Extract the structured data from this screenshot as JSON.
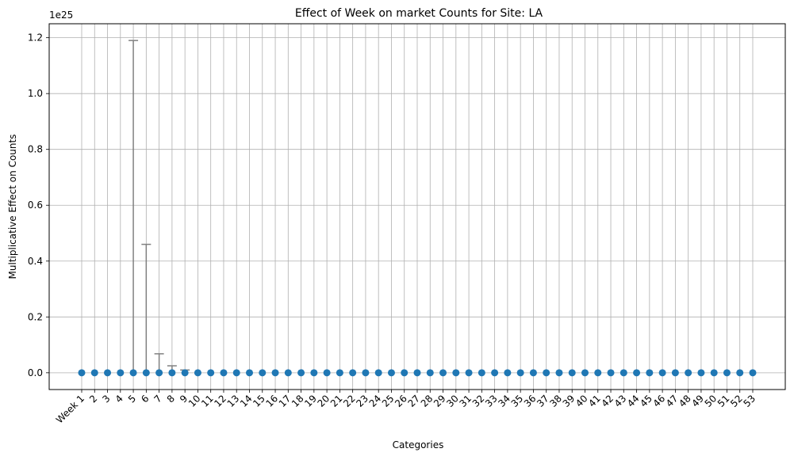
{
  "chart_data": {
    "type": "scatter",
    "title": "Effect of Week on market Counts for Site: LA",
    "xlabel": "Categories",
    "ylabel": "Multiplicative Effect on Counts",
    "y_offset_label": "1e25",
    "y_scale": 1e+25,
    "ylim": [
      -0.06,
      1.25
    ],
    "yticks": [
      0.0,
      0.2,
      0.4,
      0.6,
      0.8,
      1.0,
      1.2
    ],
    "ytick_labels": [
      "0.0",
      "0.2",
      "0.4",
      "0.6",
      "0.8",
      "1.0",
      "1.2"
    ],
    "grid": true,
    "categories": [
      "Week 1",
      "2",
      "3",
      "4",
      "5",
      "6",
      "7",
      "8",
      "9",
      "10",
      "11",
      "12",
      "13",
      "14",
      "15",
      "16",
      "17",
      "18",
      "19",
      "20",
      "21",
      "22",
      "23",
      "24",
      "25",
      "26",
      "27",
      "28",
      "29",
      "30",
      "31",
      "32",
      "33",
      "34",
      "35",
      "36",
      "37",
      "38",
      "39",
      "40",
      "41",
      "42",
      "43",
      "44",
      "45",
      "46",
      "47",
      "48",
      "49",
      "50",
      "51",
      "52",
      "53"
    ],
    "values": [
      0,
      0,
      0,
      0,
      0,
      0,
      0,
      0,
      0,
      0,
      0,
      0,
      0,
      0,
      0,
      0,
      0,
      0,
      0,
      0,
      0,
      0,
      0,
      0,
      0,
      0,
      0,
      0,
      0,
      0,
      0,
      0,
      0,
      0,
      0,
      0,
      0,
      0,
      0,
      0,
      0,
      0,
      0,
      0,
      0,
      0,
      0,
      0,
      0,
      0,
      0,
      0,
      0
    ],
    "error_upper": [
      0,
      0,
      0,
      0,
      1.19,
      0.46,
      0.068,
      0.025,
      0.01,
      0,
      0,
      0,
      0,
      0,
      0,
      0,
      0,
      0,
      0,
      0,
      0,
      0,
      0,
      0,
      0,
      0,
      0,
      0,
      0,
      0,
      0,
      0,
      0,
      0,
      0,
      0,
      0,
      0,
      0,
      0,
      0,
      0,
      0,
      0,
      0,
      0,
      0,
      0,
      0,
      0,
      0,
      0,
      0
    ],
    "marker_color": "#1f77b4",
    "errorbar_color": "#808080",
    "grid_color": "#b0b0b0"
  }
}
